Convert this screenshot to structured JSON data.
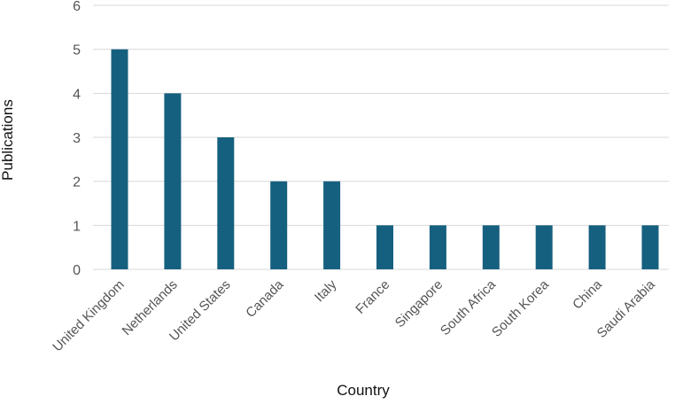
{
  "chart_data": {
    "type": "bar",
    "title": "",
    "xlabel": "Country",
    "ylabel": "Publications",
    "categories": [
      "United Kingdom",
      "Netherlands",
      "United States",
      "Canada",
      "Italy",
      "France",
      "Singapore",
      "South Africa",
      "South Korea",
      "China",
      "Saudi Arabia"
    ],
    "values": [
      5,
      4,
      3,
      2,
      2,
      1,
      1,
      1,
      1,
      1,
      1
    ],
    "ylim": [
      0,
      6
    ],
    "yticks": [
      0,
      1,
      2,
      3,
      4,
      5,
      6
    ],
    "grid": "horizontal",
    "legend": "none",
    "bar_color": "#16607f",
    "grid_color": "#d9d9d9",
    "text_color": "#555555",
    "label_color": "#111111"
  }
}
